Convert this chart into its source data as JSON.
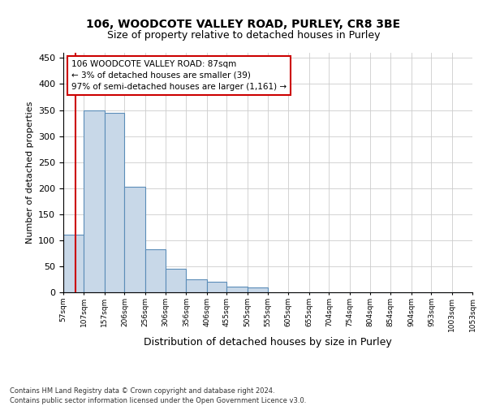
{
  "title1": "106, WOODCOTE VALLEY ROAD, PURLEY, CR8 3BE",
  "title2": "Size of property relative to detached houses in Purley",
  "xlabel": "Distribution of detached houses by size in Purley",
  "ylabel": "Number of detached properties",
  "footnote": "Contains HM Land Registry data © Crown copyright and database right 2024.\nContains public sector information licensed under the Open Government Licence v3.0.",
  "bin_edges": [
    57,
    107,
    157,
    206,
    256,
    306,
    356,
    406,
    455,
    505,
    555,
    605,
    655,
    704,
    754,
    804,
    854,
    904,
    953,
    1003,
    1053
  ],
  "bar_heights": [
    110,
    350,
    345,
    202,
    83,
    46,
    25,
    21,
    11,
    9,
    0,
    0,
    0,
    0,
    0,
    0,
    0,
    0,
    0,
    0
  ],
  "bar_color": "#c8d8e8",
  "bar_edge_color": "#5b8db8",
  "property_size": 87,
  "red_line_color": "#cc0000",
  "annotation_line1": "106 WOODCOTE VALLEY ROAD: 87sqm",
  "annotation_line2": "← 3% of detached houses are smaller (39)",
  "annotation_line3": "97% of semi-detached houses are larger (1,161) →",
  "annotation_box_color": "#ffffff",
  "annotation_box_edge_color": "#cc0000",
  "ylim": [
    0,
    460
  ],
  "yticks": [
    0,
    50,
    100,
    150,
    200,
    250,
    300,
    350,
    400,
    450
  ],
  "background_color": "#ffffff",
  "grid_color": "#cccccc",
  "title1_fontsize": 10,
  "title2_fontsize": 9,
  "ylabel_fontsize": 8,
  "xlabel_fontsize": 9
}
